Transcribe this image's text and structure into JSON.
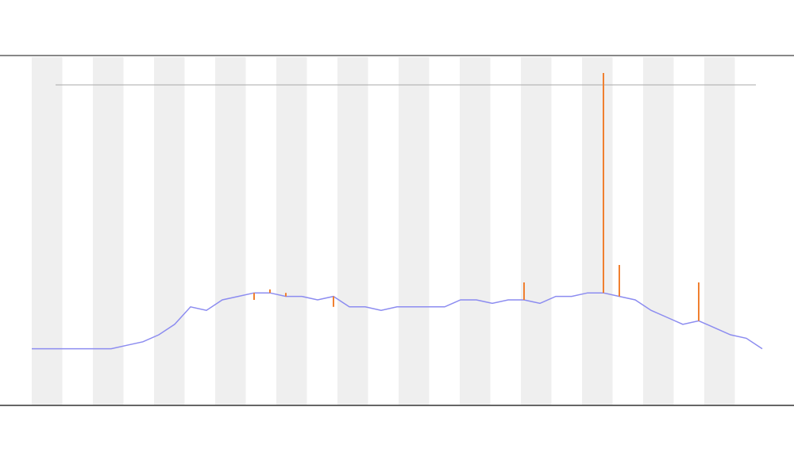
{
  "chart_data": {
    "type": "line",
    "x": [
      0,
      1,
      2,
      3,
      4,
      5,
      6,
      7,
      8,
      9,
      10,
      11,
      12,
      13,
      14,
      15,
      16,
      17,
      18,
      19,
      20,
      21,
      22,
      23,
      24,
      25,
      26,
      27,
      28,
      29,
      30,
      31,
      32,
      33,
      34,
      35,
      36,
      37,
      38,
      39,
      40,
      41,
      42,
      43,
      44,
      45,
      46
    ],
    "xlim": [
      0,
      46
    ],
    "ylim": [
      0,
      100
    ],
    "series": [
      {
        "color": "#8c8cf0",
        "values": [
          16,
          16,
          16,
          16,
          16,
          16,
          17,
          18,
          20,
          23,
          28,
          27,
          30,
          31,
          32,
          32,
          31,
          31,
          30,
          31,
          28,
          28,
          27,
          28,
          28,
          28,
          28,
          30,
          30,
          29,
          30,
          30,
          29,
          31,
          31,
          32,
          32,
          31,
          30,
          27,
          25,
          23,
          24,
          22,
          20,
          19,
          16
        ]
      },
      {
        "color": "#f08030",
        "values": [
          null,
          null,
          null,
          null,
          null,
          null,
          null,
          null,
          null,
          null,
          null,
          null,
          null,
          null,
          30,
          33,
          32,
          null,
          null,
          28,
          null,
          null,
          null,
          null,
          null,
          null,
          null,
          null,
          null,
          null,
          null,
          35,
          null,
          null,
          null,
          null,
          95,
          40,
          null,
          null,
          null,
          null,
          35,
          null,
          null,
          null,
          null
        ]
      }
    ]
  }
}
